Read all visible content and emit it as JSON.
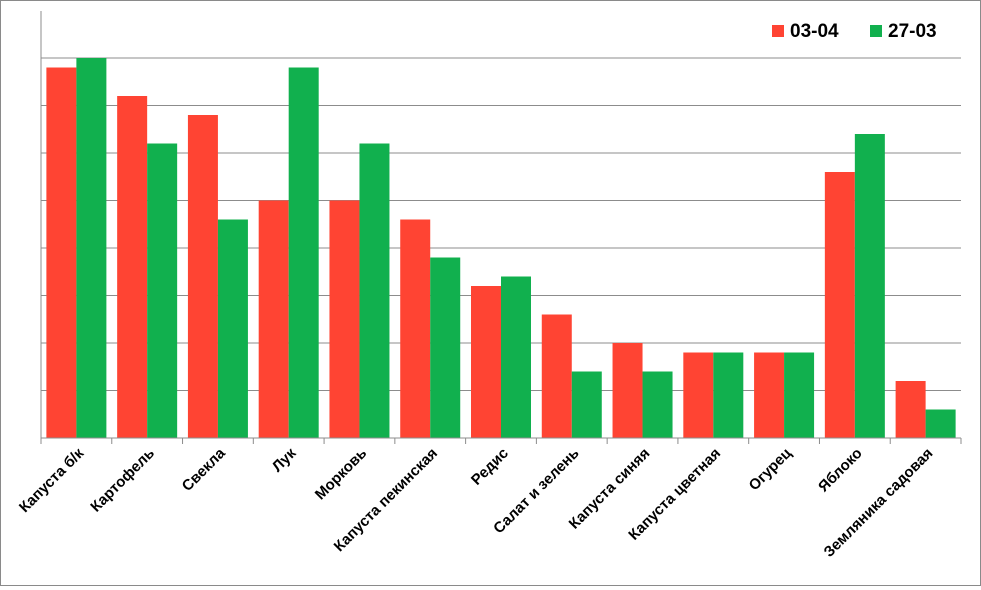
{
  "chart_data": {
    "type": "bar",
    "categories": [
      "Капуста б/к",
      "Картофель",
      "Свекла",
      "Лук",
      "Морковь",
      "Капуста пекинская",
      "Редис",
      "Салат и зелень",
      "Капуста синяя",
      "Капуста цветная",
      "Огурец",
      "Яблоко",
      "Земляника садовая"
    ],
    "series": [
      {
        "name": "03-04",
        "color": "#ff4433",
        "values": [
          7.8,
          7.2,
          6.8,
          5.0,
          5.0,
          4.6,
          3.2,
          2.6,
          2.0,
          1.8,
          1.8,
          5.6,
          1.2
        ]
      },
      {
        "name": "27-03",
        "color": "#11b04e",
        "values": [
          8.0,
          6.2,
          4.6,
          7.8,
          6.2,
          3.8,
          3.4,
          1.4,
          1.4,
          1.8,
          1.8,
          6.4,
          0.6
        ]
      }
    ],
    "ylim": [
      0,
      8.0
    ],
    "y_gridline_step": 1,
    "grid": true,
    "y_tick_labels_visible": false,
    "legend_placement": "top-right",
    "title": "",
    "xlabel": "",
    "ylabel": ""
  }
}
